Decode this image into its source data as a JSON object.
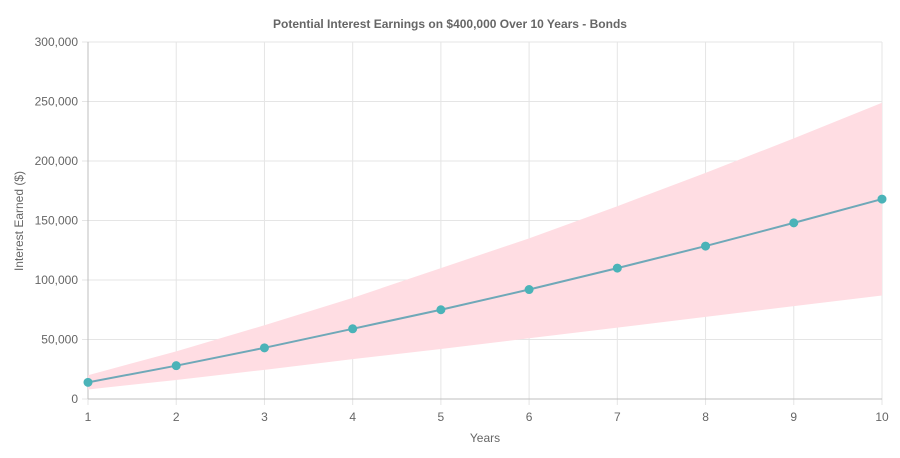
{
  "chart_data": {
    "type": "line",
    "title": "Potential Interest Earnings on $400,000 Over 10 Years - Bonds",
    "xlabel": "Years",
    "ylabel": "Interest Earned ($)",
    "x": [
      1,
      2,
      3,
      4,
      5,
      6,
      7,
      8,
      9,
      10
    ],
    "x_tick_labels": [
      "1",
      "2",
      "3",
      "4",
      "5",
      "6",
      "7",
      "8",
      "9",
      "10"
    ],
    "ylim": [
      0,
      300000
    ],
    "y_ticks": [
      0,
      50000,
      100000,
      150000,
      200000,
      250000,
      300000
    ],
    "y_tick_labels": [
      "0",
      "50,000",
      "100,000",
      "150,000",
      "200,000",
      "250,000",
      "300,000"
    ],
    "grid": true,
    "series": [
      {
        "values": [
          14000,
          28000,
          43000,
          59000,
          75000,
          92000,
          110000,
          128500,
          148000,
          168000
        ],
        "color": "#6fa8b8",
        "point_color": "#4bb3b8"
      }
    ],
    "band": {
      "lower": [
        8000,
        16000,
        24500,
        33500,
        42000,
        51000,
        60000,
        69000,
        78000,
        87000
      ],
      "upper": [
        20000,
        40000,
        62000,
        85000,
        110000,
        135000,
        162000,
        190000,
        219000,
        249000
      ],
      "color": "#ffdde3"
    }
  }
}
